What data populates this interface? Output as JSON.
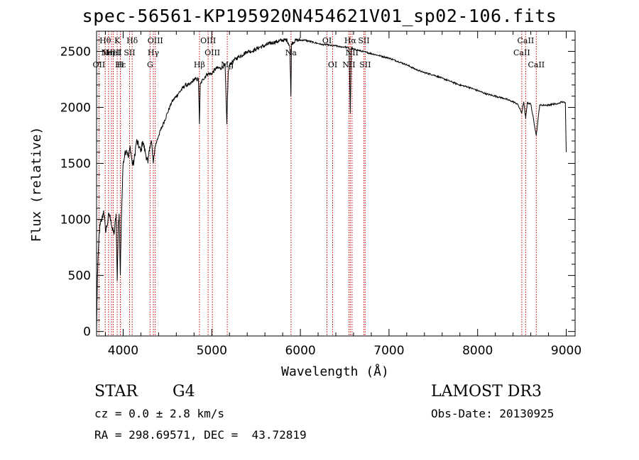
{
  "chart_data": {
    "type": "line",
    "title": "spec-56561-KP195920N454621V01_sp02-106.fits",
    "xlabel": "Wavelength (Å)",
    "ylabel": "Flux (relative)",
    "xlim": [
      3700,
      9100
    ],
    "ylim": [
      -40,
      2680
    ],
    "xticks": [
      4000,
      5000,
      6000,
      7000,
      8000,
      9000
    ],
    "xtick_labels": [
      "4000",
      "5000",
      "6000",
      "7000",
      "8000",
      "9000"
    ],
    "yticks": [
      0,
      500,
      1000,
      1500,
      2000,
      2500
    ],
    "ytick_labels": [
      "0",
      "500",
      "1000",
      "1500",
      "2000",
      "2500"
    ],
    "series": [
      {
        "name": "spectrum",
        "x": [
          3700,
          3710,
          3720,
          3730,
          3740,
          3760,
          3780,
          3800,
          3820,
          3840,
          3860,
          3880,
          3900,
          3920,
          3933,
          3945,
          3955,
          3968,
          3980,
          4000,
          4020,
          4040,
          4060,
          4080,
          4102,
          4120,
          4150,
          4180,
          4200,
          4220,
          4250,
          4280,
          4300,
          4320,
          4340,
          4360,
          4380,
          4400,
          4450,
          4500,
          4550,
          4600,
          4650,
          4700,
          4750,
          4800,
          4850,
          4861,
          4870,
          4900,
          4950,
          5000,
          5050,
          5100,
          5150,
          5170,
          5185,
          5200,
          5250,
          5300,
          5350,
          5400,
          5450,
          5500,
          5550,
          5600,
          5650,
          5700,
          5750,
          5800,
          5850,
          5880,
          5893,
          5900,
          5950,
          6000,
          6050,
          6100,
          6150,
          6200,
          6250,
          6300,
          6350,
          6400,
          6450,
          6500,
          6550,
          6563,
          6575,
          6600,
          6650,
          6700,
          6750,
          6800,
          6850,
          6900,
          6950,
          7000,
          7100,
          7200,
          7300,
          7400,
          7500,
          7600,
          7700,
          7800,
          7900,
          8000,
          8100,
          8200,
          8300,
          8400,
          8450,
          8498,
          8520,
          8542,
          8560,
          8600,
          8662,
          8700,
          8750,
          8800,
          8850,
          8900,
          8950,
          8990,
          9000
        ],
        "values": [
          0,
          500,
          700,
          880,
          950,
          1000,
          1080,
          900,
          950,
          1050,
          1000,
          900,
          880,
          1050,
          450,
          950,
          1050,
          500,
          1000,
          1500,
          1600,
          1620,
          1550,
          1650,
          1500,
          1500,
          1700,
          1650,
          1600,
          1700,
          1600,
          1500,
          1650,
          1700,
          1500,
          1650,
          1700,
          1750,
          1850,
          1950,
          2050,
          2100,
          2150,
          2200,
          2200,
          2250,
          2250,
          1850,
          2200,
          2250,
          2300,
          2300,
          2350,
          2350,
          2380,
          1850,
          2300,
          2380,
          2420,
          2450,
          2470,
          2500,
          2500,
          2520,
          2540,
          2550,
          2570,
          2580,
          2590,
          2600,
          2600,
          2550,
          2100,
          2570,
          2600,
          2600,
          2600,
          2590,
          2580,
          2570,
          2560,
          2560,
          2550,
          2550,
          2540,
          2540,
          2530,
          1950,
          2530,
          2520,
          2510,
          2500,
          2490,
          2480,
          2470,
          2460,
          2450,
          2440,
          2410,
          2380,
          2340,
          2310,
          2290,
          2260,
          2230,
          2200,
          2180,
          2150,
          2120,
          2100,
          2080,
          2050,
          2030,
          1950,
          2050,
          1900,
          2040,
          2030,
          1750,
          2020,
          2020,
          2020,
          2030,
          2030,
          2050,
          2040,
          1600
        ]
      }
    ],
    "lines": [
      {
        "x": 3727,
        "label": "OII",
        "row": 2
      },
      {
        "x": 3798,
        "label": "Hθ",
        "row": 0
      },
      {
        "x": 3835,
        "label": "Hη",
        "row": 1
      },
      {
        "x": 3869,
        "label": "NeIII",
        "row": 1
      },
      {
        "x": 3889,
        "label": "HeI",
        "row": 1
      },
      {
        "x": 3933,
        "label": "K",
        "row": 0
      },
      {
        "x": 3968,
        "label": "H",
        "row": 2
      },
      {
        "x": 3970,
        "label": "Hε",
        "row": 2
      },
      {
        "x": 4072,
        "label": "SII",
        "row": 1
      },
      {
        "x": 4102,
        "label": "Hδ",
        "row": 0
      },
      {
        "x": 4304,
        "label": "G",
        "row": 2
      },
      {
        "x": 4341,
        "label": "Hγ",
        "row": 1
      },
      {
        "x": 4363,
        "label": "OIII",
        "row": 0
      },
      {
        "x": 4861,
        "label": "Hβ",
        "row": 2
      },
      {
        "x": 4959,
        "label": "OIII",
        "row": 0
      },
      {
        "x": 5007,
        "label": "OIII",
        "row": 1
      },
      {
        "x": 5175,
        "label": "Mg",
        "row": 2
      },
      {
        "x": 5894,
        "label": "Na",
        "row": 1
      },
      {
        "x": 6300,
        "label": "OI",
        "row": 0
      },
      {
        "x": 6364,
        "label": "OI",
        "row": 2
      },
      {
        "x": 6548,
        "label": "NII",
        "row": 2
      },
      {
        "x": 6563,
        "label": "Hα",
        "row": 0
      },
      {
        "x": 6583,
        "label": "NII",
        "row": 1
      },
      {
        "x": 6716,
        "label": "SII",
        "row": 0
      },
      {
        "x": 6731,
        "label": "SII",
        "row": 2
      },
      {
        "x": 8498,
        "label": "CaII",
        "row": 1
      },
      {
        "x": 8542,
        "label": "CaII",
        "row": 0
      },
      {
        "x": 8662,
        "label": "CaII",
        "row": 2
      }
    ]
  },
  "info": {
    "object_type": "STAR",
    "subclass": "G4",
    "survey": "LAMOST DR3",
    "cz": "cz = 0.0 ± 2.8 km/s",
    "obs_date": "Obs-Date: 20130925",
    "radec": "RA = 298.69571, DEC =  43.72819"
  },
  "colors": {
    "line_marker": "#cc0000",
    "spectrum": "#000000"
  }
}
